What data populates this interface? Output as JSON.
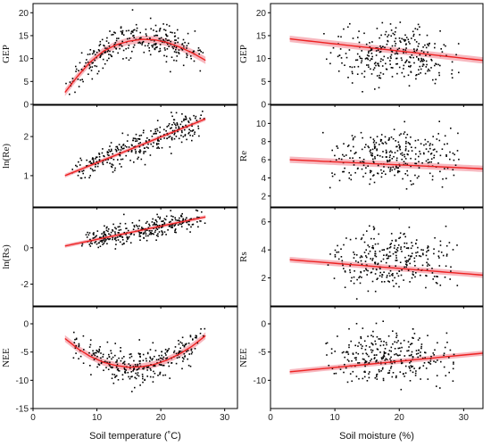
{
  "chart_data": [
    {
      "type": "scatter",
      "panel": "temp-gep",
      "ylabel": "GEP",
      "xlabel": "",
      "xlim": [
        0,
        32
      ],
      "ylim": [
        0,
        22
      ],
      "xticks": [
        "0",
        "10",
        "20",
        "30"
      ],
      "yticks": [
        "0",
        "5",
        "10",
        "15",
        "20"
      ],
      "show_xtick_labels": false,
      "fit": {
        "kind": "quadratic",
        "points": [
          [
            5,
            2.6
          ],
          [
            7,
            6.2
          ],
          [
            9,
            9.3
          ],
          [
            11,
            11.6
          ],
          [
            13,
            13.0
          ],
          [
            15,
            13.8
          ],
          [
            17,
            14.2
          ],
          [
            19,
            14.1
          ],
          [
            21,
            13.5
          ],
          [
            23,
            12.5
          ],
          [
            25,
            11.2
          ],
          [
            27,
            9.6
          ]
        ],
        "band": 0.8
      },
      "cloud": {
        "x_range": [
          5,
          27
        ],
        "mode": "fit",
        "spread": 3.2,
        "count": 300
      }
    },
    {
      "type": "scatter",
      "panel": "temp-lnre",
      "ylabel": "ln(Re)",
      "xlabel": "",
      "xlim": [
        0,
        32
      ],
      "ylim": [
        0.2,
        2.8
      ],
      "xticks": [
        "0",
        "10",
        "20",
        "30"
      ],
      "yticks": [
        "1",
        "2"
      ],
      "ytick_values": [
        1,
        2
      ],
      "show_xtick_labels": false,
      "fit": {
        "kind": "linear",
        "points": [
          [
            5,
            1.0
          ],
          [
            27,
            2.45
          ]
        ],
        "band": 0.05
      },
      "cloud": {
        "x_range": [
          6,
          27
        ],
        "mode": "fit",
        "spread": 0.35,
        "count": 300
      }
    },
    {
      "type": "scatter",
      "panel": "temp-lnrs",
      "ylabel": "ln(Rs)",
      "xlabel": "",
      "xlim": [
        0,
        32
      ],
      "ylim": [
        -3.2,
        2.2
      ],
      "xticks": [
        "0",
        "10",
        "20",
        "30"
      ],
      "yticks": [
        "-2",
        "0"
      ],
      "ytick_values": [
        -2,
        0
      ],
      "show_xtick_labels": false,
      "fit": {
        "kind": "linear",
        "points": [
          [
            5,
            0.1
          ],
          [
            27,
            1.7
          ]
        ],
        "band": 0.1
      },
      "cloud": {
        "x_range": [
          7,
          27
        ],
        "mode": "fit",
        "spread": 0.55,
        "count": 300
      }
    },
    {
      "type": "scatter",
      "panel": "temp-nee",
      "ylabel": "NEE",
      "xlabel": "Soil temperature (˚C)",
      "xlim": [
        0,
        32
      ],
      "ylim": [
        -15,
        3
      ],
      "xticks": [
        "0",
        "10",
        "20",
        "30"
      ],
      "yticks": [
        "-15",
        "-10",
        "-5",
        "0"
      ],
      "ytick_values": [
        -15,
        -10,
        -5,
        0
      ],
      "show_xtick_labels": true,
      "fit": {
        "kind": "quadratic",
        "points": [
          [
            5,
            -2.6
          ],
          [
            7,
            -4.4
          ],
          [
            9,
            -5.8
          ],
          [
            11,
            -6.8
          ],
          [
            13,
            -7.4
          ],
          [
            15,
            -7.7
          ],
          [
            17,
            -7.6
          ],
          [
            19,
            -7.2
          ],
          [
            21,
            -6.4
          ],
          [
            23,
            -5.3
          ],
          [
            25,
            -3.9
          ],
          [
            27,
            -2.1
          ]
        ],
        "band": 0.6
      },
      "cloud": {
        "x_range": [
          6,
          27
        ],
        "mode": "fit",
        "spread": 2.6,
        "count": 300
      }
    },
    {
      "type": "scatter",
      "panel": "moisture-gep",
      "ylabel": "GEP",
      "xlabel": "",
      "xlim": [
        0,
        33
      ],
      "ylim": [
        0,
        22
      ],
      "xticks": [
        "0",
        "10",
        "20",
        "30"
      ],
      "yticks": [
        "0",
        "5",
        "10",
        "15",
        "20"
      ],
      "show_xtick_labels": false,
      "fit": {
        "kind": "linear",
        "points": [
          [
            3,
            14.3
          ],
          [
            33,
            9.6
          ]
        ],
        "band": 0.7
      },
      "cloud": {
        "x_range": [
          4,
          30
        ],
        "mode": "band",
        "y_range": [
          2,
          20
        ],
        "count": 300
      }
    },
    {
      "type": "scatter",
      "panel": "moisture-re",
      "ylabel": "Re",
      "xlabel": "",
      "xlim": [
        0,
        33
      ],
      "ylim": [
        0.8,
        12
      ],
      "xticks": [
        "0",
        "10",
        "20",
        "30"
      ],
      "yticks": [
        "2",
        "4",
        "6",
        "8",
        "10"
      ],
      "ytick_values": [
        2,
        4,
        6,
        8,
        10
      ],
      "show_xtick_labels": false,
      "fit": {
        "kind": "linear",
        "points": [
          [
            3,
            6.0
          ],
          [
            33,
            5.0
          ]
        ],
        "band": 0.35
      },
      "cloud": {
        "x_range": [
          4,
          30
        ],
        "mode": "band",
        "y_range": [
          2,
          11
        ],
        "count": 300
      }
    },
    {
      "type": "scatter",
      "panel": "moisture-rs",
      "ylabel": "Rs",
      "xlabel": "",
      "xlim": [
        0,
        33
      ],
      "ylim": [
        0,
        7
      ],
      "xticks": [
        "0",
        "10",
        "20",
        "30"
      ],
      "yticks": [
        "2",
        "4",
        "6"
      ],
      "ytick_values": [
        2,
        4,
        6
      ],
      "show_xtick_labels": false,
      "fit": {
        "kind": "linear",
        "points": [
          [
            3,
            3.3
          ],
          [
            33,
            2.2
          ]
        ],
        "band": 0.2
      },
      "cloud": {
        "x_range": [
          4,
          30
        ],
        "mode": "band",
        "y_range": [
          0.3,
          6.3
        ],
        "count": 300
      }
    },
    {
      "type": "scatter",
      "panel": "moisture-nee",
      "ylabel": "NEE",
      "xlabel": "Soil moisture (%)",
      "xlim": [
        0,
        33
      ],
      "ylim": [
        -15,
        3
      ],
      "xticks": [
        "0",
        "10",
        "20",
        "30"
      ],
      "yticks": [
        "-10",
        "-5",
        "0"
      ],
      "ytick_values": [
        -10,
        -5,
        0
      ],
      "show_xtick_labels": true,
      "fit": {
        "kind": "linear",
        "points": [
          [
            3,
            -8.5
          ],
          [
            33,
            -5.2
          ]
        ],
        "band": 0.45
      },
      "cloud": {
        "x_range": [
          4,
          30
        ],
        "mode": "band",
        "y_range": [
          -13,
          1
        ],
        "count": 300
      }
    }
  ],
  "colors": {
    "points": "#000000",
    "fit_line": "#ee2222",
    "fit_band": "#f4a0aa",
    "frame": "#000000"
  }
}
